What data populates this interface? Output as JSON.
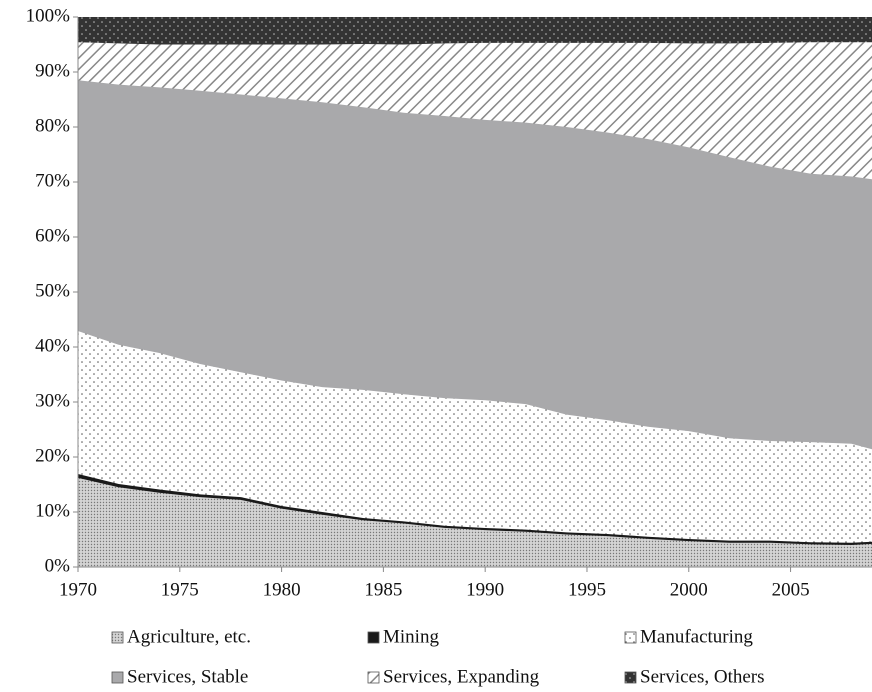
{
  "chart_data": {
    "type": "stacked-area",
    "x": [
      1970,
      1972,
      1974,
      1976,
      1978,
      1980,
      1982,
      1984,
      1986,
      1988,
      1990,
      1992,
      1994,
      1996,
      1998,
      2000,
      2002,
      2004,
      2006,
      2008,
      2009
    ],
    "series": [
      {
        "name": "Agriculture, etc.",
        "color": "#c8c8c8",
        "pattern": "fine-dots",
        "values": [
          16.3,
          14.6,
          13.6,
          12.8,
          12.3,
          10.7,
          9.6,
          8.6,
          8.0,
          7.2,
          6.8,
          6.5,
          6.0,
          5.7,
          5.2,
          4.8,
          4.5,
          4.5,
          4.2,
          4.1,
          4.3
        ]
      },
      {
        "name": "Mining",
        "color": "#1a1a1a",
        "pattern": "solid",
        "values": [
          0.6,
          0.5,
          0.5,
          0.4,
          0.4,
          0.4,
          0.4,
          0.3,
          0.3,
          0.3,
          0.3,
          0.3,
          0.3,
          0.3,
          0.3,
          0.3,
          0.3,
          0.3,
          0.3,
          0.3,
          0.3
        ]
      },
      {
        "name": "Manufacturing",
        "color": "#ffffff",
        "pattern": "sparse-dots",
        "values": [
          26.1,
          25.4,
          24.9,
          23.8,
          22.8,
          22.9,
          22.8,
          23.4,
          23.2,
          23.3,
          23.3,
          22.9,
          21.5,
          20.8,
          20.1,
          19.7,
          18.7,
          18.2,
          18.3,
          18.1,
          16.9
        ]
      },
      {
        "name": "Services, Stable",
        "color": "#a9a9ab",
        "pattern": "solid",
        "values": [
          45.5,
          47.2,
          48.2,
          49.6,
          50.4,
          51.2,
          51.7,
          51.3,
          51.1,
          51.2,
          50.9,
          51.1,
          52.2,
          52.2,
          52.2,
          51.5,
          51.0,
          49.8,
          48.7,
          48.5,
          49.0
        ]
      },
      {
        "name": "Services, Expanding",
        "color": "#ffffff",
        "pattern": "hatch",
        "values": [
          6.9,
          7.5,
          7.8,
          8.4,
          9.1,
          9.8,
          10.5,
          11.5,
          12.4,
          13.2,
          14.0,
          14.5,
          15.3,
          16.3,
          17.5,
          18.9,
          20.7,
          22.5,
          23.9,
          24.4,
          24.9
        ]
      },
      {
        "name": "Services, Others",
        "color": "#333333",
        "pattern": "light-dots",
        "values": [
          4.6,
          4.8,
          5.0,
          5.0,
          5.0,
          5.0,
          5.0,
          4.9,
          5.0,
          4.8,
          4.7,
          4.7,
          4.7,
          4.7,
          4.7,
          4.8,
          4.8,
          4.7,
          4.6,
          4.6,
          4.6
        ]
      }
    ],
    "xlim": [
      1970,
      2009
    ],
    "xticks": [
      1970,
      1975,
      1980,
      1985,
      1990,
      1995,
      2000,
      2005
    ],
    "ylim": [
      0,
      100
    ],
    "yticks": [
      {
        "value": 0,
        "label": "0%"
      },
      {
        "value": 10,
        "label": "10%"
      },
      {
        "value": 20,
        "label": "20%"
      },
      {
        "value": 30,
        "label": "30%"
      },
      {
        "value": 40,
        "label": "40%"
      },
      {
        "value": 50,
        "label": "50%"
      },
      {
        "value": 60,
        "label": "60%"
      },
      {
        "value": 70,
        "label": "70%"
      },
      {
        "value": 80,
        "label": "80%"
      },
      {
        "value": 90,
        "label": "90%"
      },
      {
        "value": 100,
        "label": "100%"
      }
    ],
    "legend": "bottom"
  }
}
